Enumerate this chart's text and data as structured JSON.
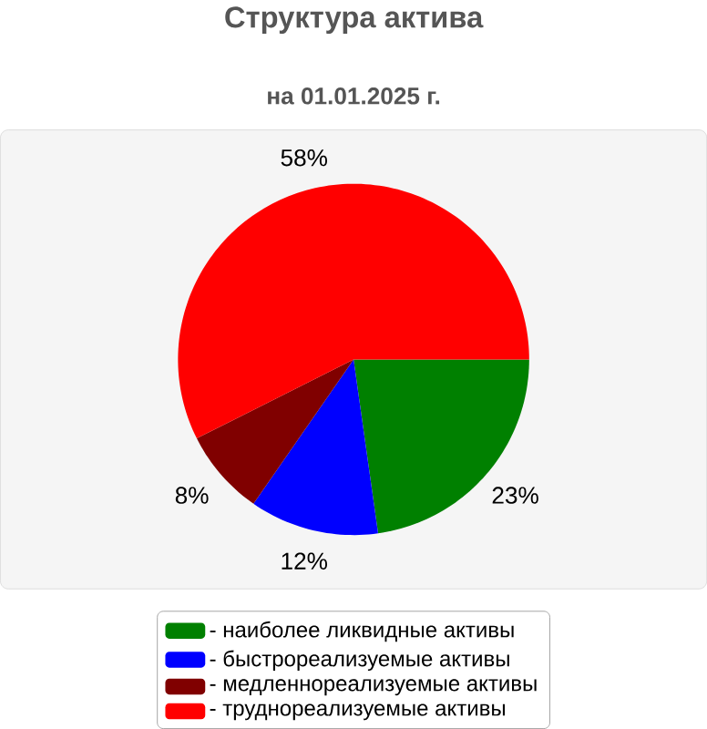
{
  "chart_data": {
    "type": "pie",
    "title": "Структура актива",
    "subtitle": "на 01.01.2025 г.",
    "categories": [
      "- наиболее ликвидные активы",
      "- быстрореализуемые активы",
      "- медленнореализуемые активы",
      "- труднореализуемые активы"
    ],
    "values": [
      23,
      12,
      8,
      58
    ],
    "value_labels": [
      "23%",
      "12%",
      "8%",
      "58%"
    ],
    "colors": [
      "#008000",
      "#0000ff",
      "#800000",
      "#ff0000"
    ],
    "legend": "bottom"
  }
}
